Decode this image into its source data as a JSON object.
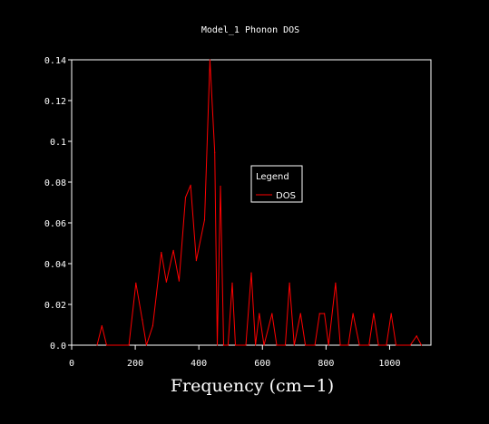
{
  "chart_data": {
    "type": "line",
    "title": "Model_1 Phonon DOS",
    "xlabel": "Frequency (cm−1)",
    "ylabel": "",
    "xlim": [
      0,
      1130
    ],
    "ylim": [
      0,
      0.14
    ],
    "x_ticks": [
      {
        "value": 0,
        "label": "0"
      },
      {
        "value": 200,
        "label": "200"
      },
      {
        "value": 400,
        "label": "400"
      },
      {
        "value": 600,
        "label": "600"
      },
      {
        "value": 800,
        "label": "800"
      },
      {
        "value": 1000,
        "label": "1000"
      }
    ],
    "y_ticks": [
      {
        "value": 0,
        "label": "0.0"
      },
      {
        "value": 0.02,
        "label": "0.02"
      },
      {
        "value": 0.04,
        "label": "0.04"
      },
      {
        "value": 0.06,
        "label": "0.06"
      },
      {
        "value": 0.08,
        "label": "0.08"
      },
      {
        "value": 0.1,
        "label": "0.1"
      },
      {
        "value": 0.12,
        "label": "0.12"
      },
      {
        "value": 0.14,
        "label": "0.14"
      }
    ],
    "grid": false,
    "legend": {
      "title": "Legend",
      "placement": "center-right"
    },
    "series": [
      {
        "name": "DOS",
        "color": "#ff0000",
        "points": [
          [
            80,
            0.0
          ],
          [
            95,
            0.0095
          ],
          [
            110,
            0.0
          ],
          [
            180,
            0.0
          ],
          [
            202,
            0.0305
          ],
          [
            222,
            0.0125
          ],
          [
            235,
            0.0
          ],
          [
            255,
            0.0095
          ],
          [
            282,
            0.0455
          ],
          [
            298,
            0.031
          ],
          [
            320,
            0.0465
          ],
          [
            338,
            0.0315
          ],
          [
            358,
            0.0725
          ],
          [
            374,
            0.0785
          ],
          [
            392,
            0.0415
          ],
          [
            418,
            0.0615
          ],
          [
            435,
            0.14
          ],
          [
            450,
            0.0945
          ],
          [
            458,
            0.0
          ],
          [
            468,
            0.078
          ],
          [
            478,
            0.0
          ],
          [
            492,
            0.0
          ],
          [
            505,
            0.0305
          ],
          [
            515,
            0.0
          ],
          [
            548,
            0.0
          ],
          [
            565,
            0.0355
          ],
          [
            578,
            0.0
          ],
          [
            590,
            0.0155
          ],
          [
            605,
            0.0
          ],
          [
            630,
            0.0155
          ],
          [
            645,
            0.0
          ],
          [
            672,
            0.0
          ],
          [
            685,
            0.0305
          ],
          [
            700,
            0.0
          ],
          [
            720,
            0.0155
          ],
          [
            735,
            0.0
          ],
          [
            765,
            0.0
          ],
          [
            780,
            0.0155
          ],
          [
            795,
            0.0155
          ],
          [
            808,
            0.0
          ],
          [
            830,
            0.0305
          ],
          [
            845,
            0.0
          ],
          [
            870,
            0.0
          ],
          [
            885,
            0.0155
          ],
          [
            905,
            0.0
          ],
          [
            935,
            0.0
          ],
          [
            950,
            0.0155
          ],
          [
            965,
            0.0
          ],
          [
            990,
            0.0
          ],
          [
            1005,
            0.0155
          ],
          [
            1020,
            0.0
          ],
          [
            1065,
            0.0
          ],
          [
            1085,
            0.0045
          ],
          [
            1100,
            0.0
          ]
        ]
      }
    ]
  },
  "colors": {
    "background": "#000000",
    "axes": "#ffffff",
    "text": "#ffffff",
    "series": "#ff0000"
  }
}
